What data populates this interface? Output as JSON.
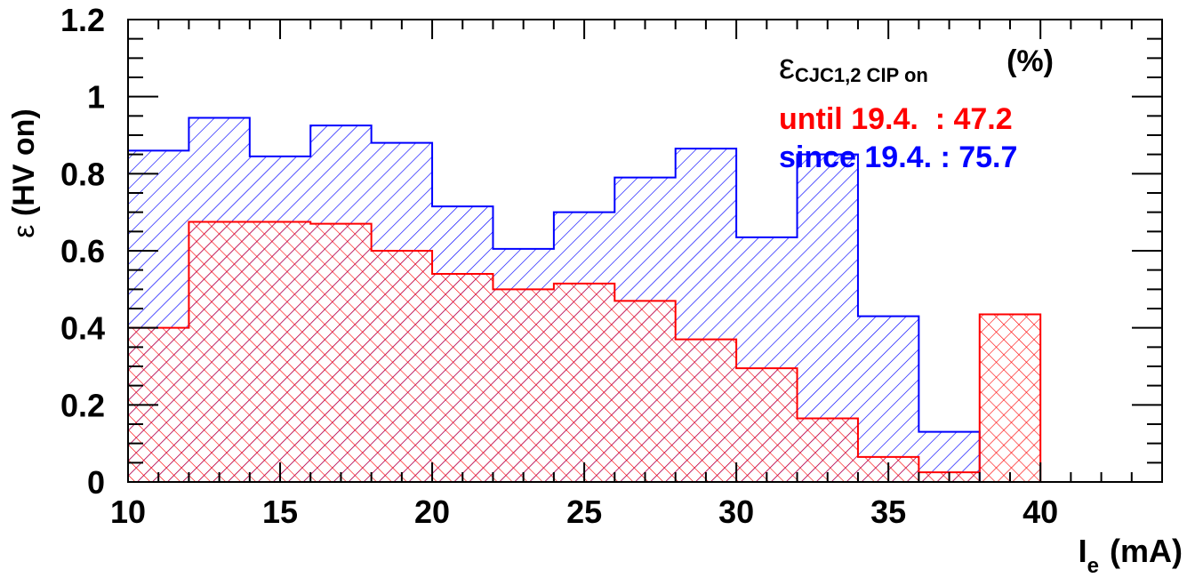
{
  "chart_data": {
    "type": "bar",
    "subtype": "histogram",
    "xlabel": {
      "main": "I",
      "sub": "e",
      "unit": "(mA)"
    },
    "ylabel": {
      "symbol": "ε",
      "rest": " (HV on)"
    },
    "xlim": [
      10,
      44
    ],
    "ylim": [
      0,
      1.2
    ],
    "x_ticks": [
      "10",
      "15",
      "20",
      "25",
      "30",
      "35",
      "40"
    ],
    "y_ticks": [
      "0",
      "0.2",
      "0.4",
      "0.6",
      "0.8",
      "1",
      "1.2"
    ],
    "bin_edges": [
      10,
      12,
      14,
      16,
      18,
      20,
      22,
      24,
      26,
      28,
      30,
      32,
      34,
      36,
      38,
      40
    ],
    "series": [
      {
        "name": "since 19.4.",
        "color": "#0000ff",
        "hatch": "diagonal",
        "values": [
          0.86,
          0.945,
          0.845,
          0.925,
          0.88,
          0.715,
          0.605,
          0.7,
          0.79,
          0.865,
          0.635,
          0.85,
          0.43,
          0.13,
          null
        ]
      },
      {
        "name": "until 19.4.",
        "color": "#ff0000",
        "hatch": "cross",
        "values": [
          0.4,
          0.675,
          0.675,
          0.67,
          0.6,
          0.54,
          0.5,
          0.515,
          0.47,
          0.37,
          0.295,
          0.165,
          0.065,
          0.025,
          0.435
        ]
      }
    ],
    "legend": {
      "position": "top-right",
      "header_symbol": "ε",
      "header_sub": "CJC1,2 CIP on",
      "header_unit": "(%)",
      "entries": [
        {
          "text": "until 19.4.  : 47.2",
          "color": "#ff0000"
        },
        {
          "text": "since 19.4. : 75.7",
          "color": "#0000ff"
        }
      ]
    }
  }
}
